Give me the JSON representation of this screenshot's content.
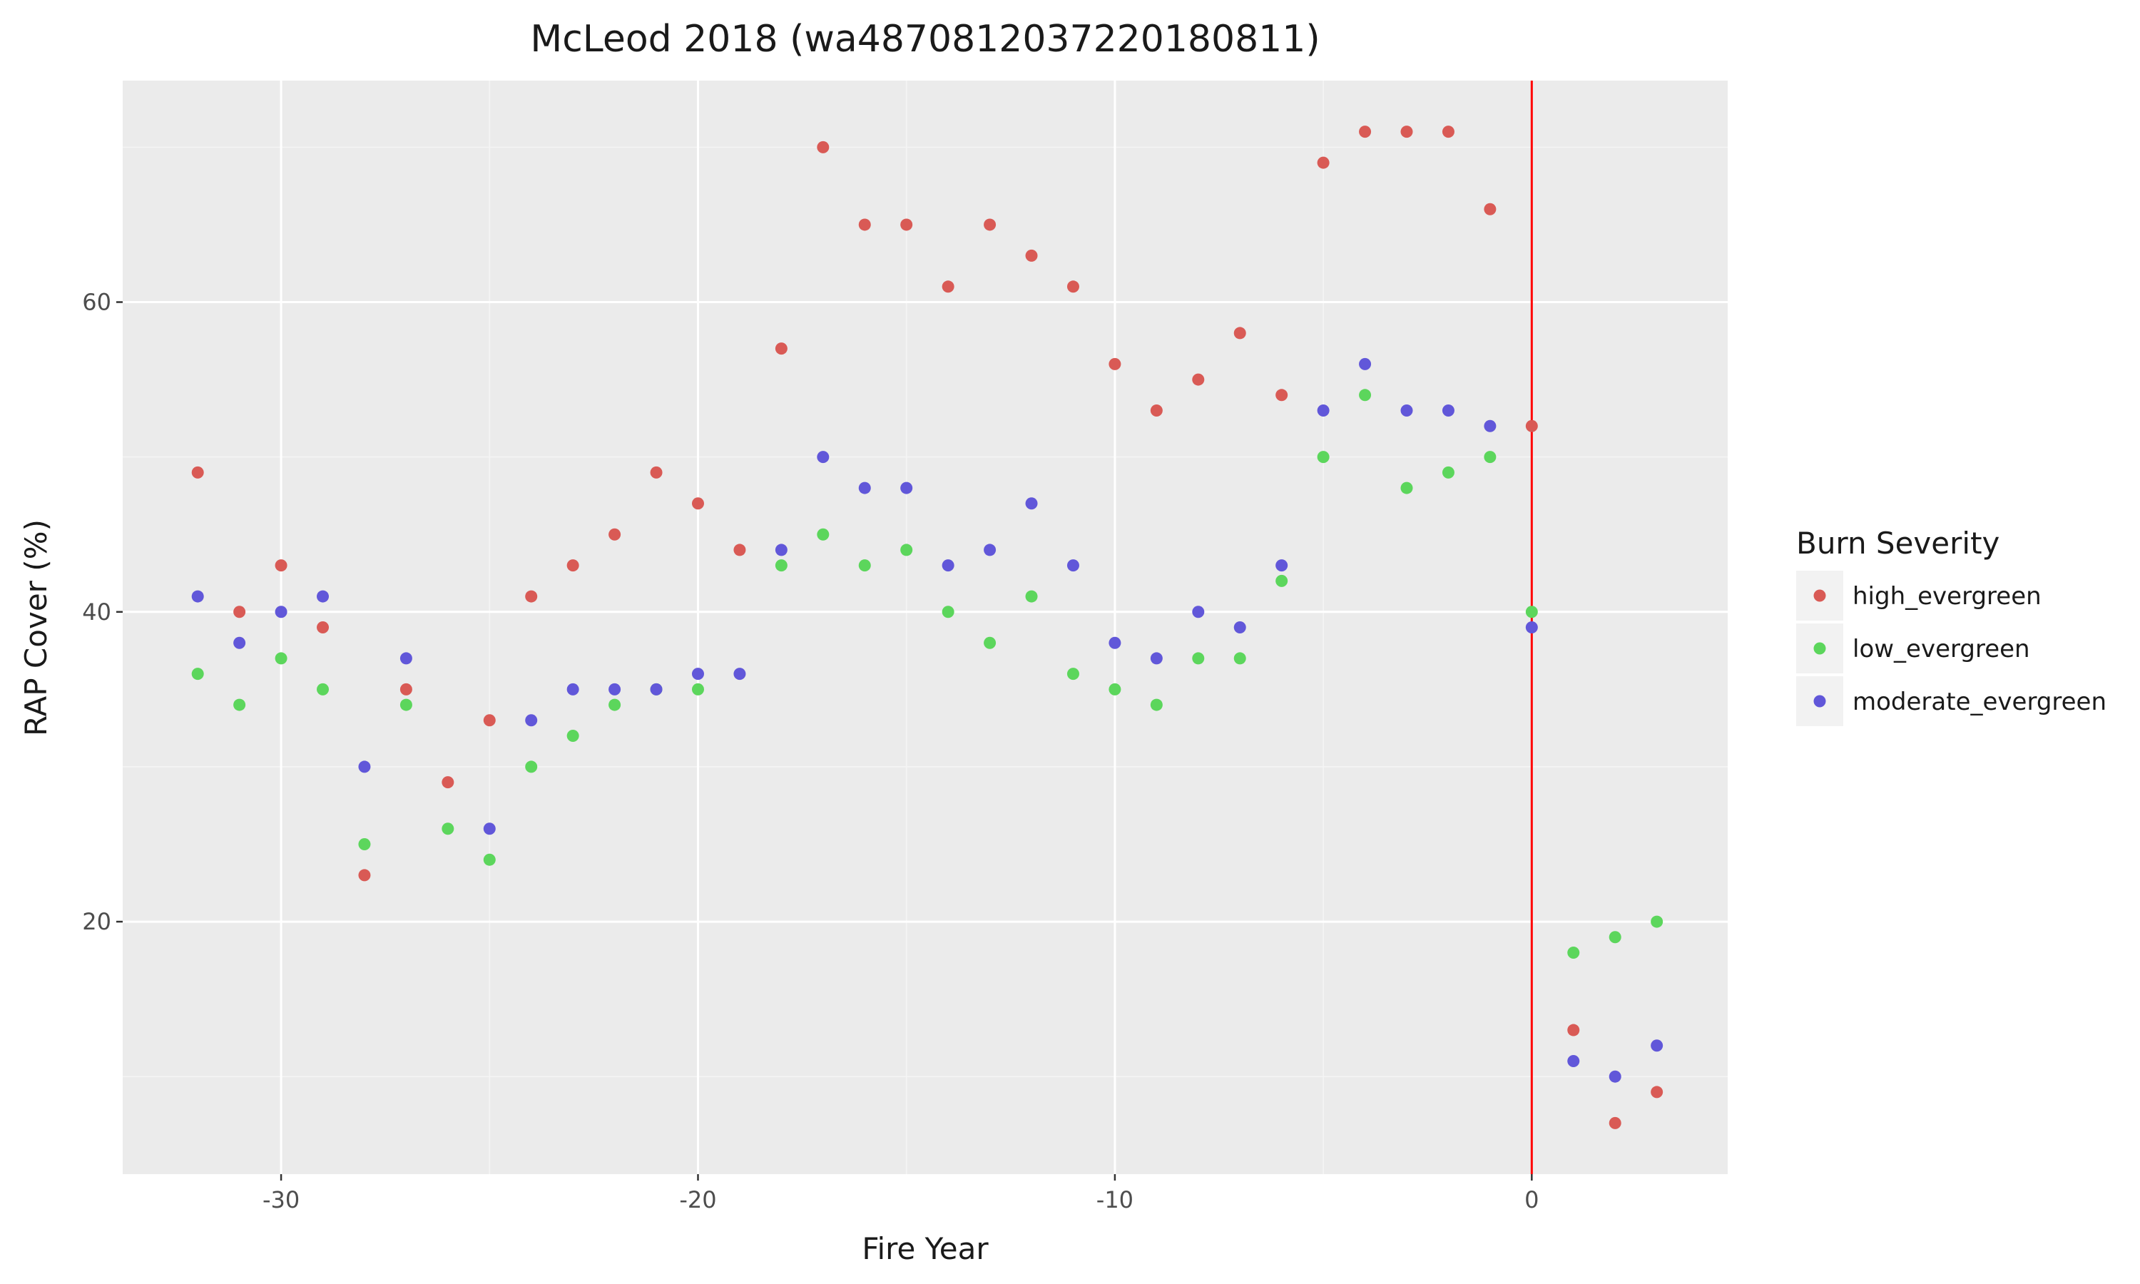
{
  "chart_data": {
    "type": "scatter",
    "title": "McLeod 2018 (wa48708120372201808​11)",
    "xlabel": "Fire Year",
    "ylabel": "RAP Cover (%)",
    "xlim": [
      -33.8,
      4.7
    ],
    "ylim": [
      3.7,
      74.3
    ],
    "x_ticks": [
      -30,
      -20,
      -10,
      0
    ],
    "x_tick_labels": [
      "-30",
      "-20",
      "-10",
      "0"
    ],
    "x_minor_ticks": [
      -25,
      -15,
      -5
    ],
    "y_ticks": [
      20,
      40,
      60
    ],
    "y_tick_labels": [
      "20",
      "40",
      "60"
    ],
    "y_minor_ticks": [
      10,
      30,
      50,
      70
    ],
    "grid": true,
    "vline": {
      "x": 0,
      "color": "#ff0000"
    },
    "legend": {
      "title": "Burn Severity",
      "position": "right"
    },
    "series": [
      {
        "name": "high_evergreen",
        "color": "#d95a55",
        "points": [
          [
            -32,
            49
          ],
          [
            -31,
            40
          ],
          [
            -30,
            43
          ],
          [
            -29,
            39
          ],
          [
            -28,
            23
          ],
          [
            -27,
            35
          ],
          [
            -26,
            29
          ],
          [
            -25,
            33
          ],
          [
            -24,
            41
          ],
          [
            -23,
            43
          ],
          [
            -22,
            45
          ],
          [
            -21,
            49
          ],
          [
            -20,
            47
          ],
          [
            -19,
            44
          ],
          [
            -18,
            57
          ],
          [
            -17,
            70
          ],
          [
            -16,
            65
          ],
          [
            -15,
            65
          ],
          [
            -14,
            61
          ],
          [
            -13,
            65
          ],
          [
            -12,
            63
          ],
          [
            -11,
            61
          ],
          [
            -10,
            56
          ],
          [
            -9,
            53
          ],
          [
            -8,
            55
          ],
          [
            -7,
            58
          ],
          [
            -6,
            54
          ],
          [
            -5,
            69
          ],
          [
            -4,
            71
          ],
          [
            -3,
            71
          ],
          [
            -2,
            71
          ],
          [
            -1,
            66
          ],
          [
            0,
            52
          ],
          [
            1,
            13
          ],
          [
            2,
            7
          ],
          [
            3,
            9
          ]
        ]
      },
      {
        "name": "low_evergreen",
        "color": "#5cd65c",
        "points": [
          [
            -32,
            36
          ],
          [
            -31,
            34
          ],
          [
            -30,
            37
          ],
          [
            -29,
            35
          ],
          [
            -28,
            25
          ],
          [
            -27,
            34
          ],
          [
            -26,
            26
          ],
          [
            -25,
            24
          ],
          [
            -24,
            30
          ],
          [
            -23,
            32
          ],
          [
            -22,
            34
          ],
          [
            -21,
            35
          ],
          [
            -20,
            35
          ],
          [
            -18,
            43
          ],
          [
            -17,
            45
          ],
          [
            -16,
            43
          ],
          [
            -15,
            44
          ],
          [
            -14,
            40
          ],
          [
            -13,
            38
          ],
          [
            -12,
            41
          ],
          [
            -11,
            36
          ],
          [
            -10,
            35
          ],
          [
            -9,
            34
          ],
          [
            -8,
            37
          ],
          [
            -7,
            37
          ],
          [
            -6,
            42
          ],
          [
            -5,
            50
          ],
          [
            -4,
            54
          ],
          [
            -3,
            48
          ],
          [
            -2,
            49
          ],
          [
            -1,
            50
          ],
          [
            0,
            40
          ],
          [
            1,
            18
          ],
          [
            2,
            19
          ],
          [
            3,
            20
          ]
        ]
      },
      {
        "name": "moderate_evergreen",
        "color": "#6157d9",
        "points": [
          [
            -32,
            41
          ],
          [
            -31,
            38
          ],
          [
            -30,
            40
          ],
          [
            -29,
            41
          ],
          [
            -28,
            30
          ],
          [
            -27,
            37
          ],
          [
            -25,
            26
          ],
          [
            -24,
            33
          ],
          [
            -23,
            35
          ],
          [
            -22,
            35
          ],
          [
            -21,
            35
          ],
          [
            -20,
            36
          ],
          [
            -19,
            36
          ],
          [
            -18,
            44
          ],
          [
            -17,
            50
          ],
          [
            -16,
            48
          ],
          [
            -15,
            48
          ],
          [
            -14,
            43
          ],
          [
            -13,
            44
          ],
          [
            -12,
            47
          ],
          [
            -11,
            43
          ],
          [
            -10,
            38
          ],
          [
            -9,
            37
          ],
          [
            -8,
            40
          ],
          [
            -7,
            39
          ],
          [
            -6,
            43
          ],
          [
            -5,
            53
          ],
          [
            -4,
            56
          ],
          [
            -3,
            53
          ],
          [
            -2,
            53
          ],
          [
            -1,
            52
          ],
          [
            0,
            39
          ],
          [
            1,
            11
          ],
          [
            2,
            10
          ],
          [
            3,
            12
          ]
        ]
      }
    ]
  }
}
